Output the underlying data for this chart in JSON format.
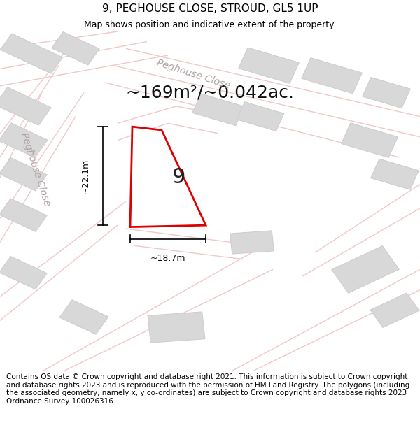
{
  "title": "9, PEGHOUSE CLOSE, STROUD, GL5 1UP",
  "subtitle": "Map shows position and indicative extent of the property.",
  "area_text": "~169m²/~0.042ac.",
  "plot_number": "9",
  "dim_width": "~18.7m",
  "dim_height": "~22.1m",
  "footer": "Contains OS data © Crown copyright and database right 2021. This information is subject to Crown copyright and database rights 2023 and is reproduced with the permission of HM Land Registry. The polygons (including the associated geometry, namely x, y co-ordinates) are subject to Crown copyright and database rights 2023 Ordnance Survey 100026316.",
  "bg_color": "#ffffff",
  "road_color": "#f0c8c8",
  "plot_fill": "#ffffff",
  "plot_edge": "#dd0000",
  "building_fill": "#d8d8d8",
  "building_edge": "#cccccc",
  "street_label_color": "#b0a0a0",
  "street_label1": "Peghouse Close",
  "street_label2": "Peghouse Close",
  "road_lw": 1.0,
  "title_fontsize": 11,
  "subtitle_fontsize": 9,
  "area_fontsize": 18,
  "plot_label_fontsize": 22,
  "street_fontsize": 10,
  "footer_fontsize": 7.5
}
